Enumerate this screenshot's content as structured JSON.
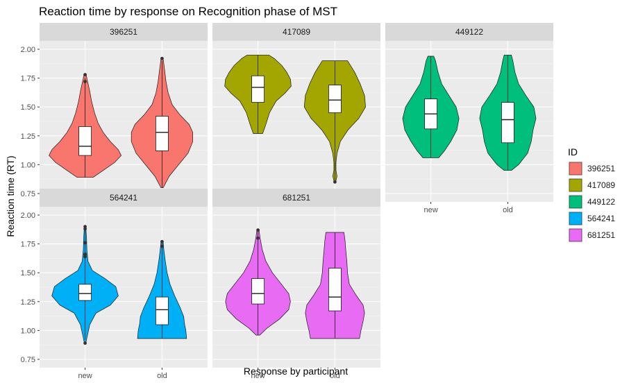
{
  "chart_data": {
    "type": "violin",
    "title": "Reaction time by response on Recognition phase of MST",
    "xlabel": "Response by participant",
    "ylabel": "Reaction time (RT)",
    "ylim": [
      0.75,
      2.0
    ],
    "yticks": [
      "0.75",
      "1.00",
      "1.25",
      "1.50",
      "1.75",
      "2.00"
    ],
    "categories": [
      "new",
      "old"
    ],
    "grid": true,
    "legend": {
      "title": "ID",
      "position": "right"
    },
    "panels": [
      {
        "id": "396251",
        "color": "#F8766D",
        "groups": [
          {
            "category": "new",
            "min": 0.89,
            "q1": 1.08,
            "median": 1.16,
            "q3": 1.33,
            "max": 1.75,
            "outliers": [
              1.72,
              1.78
            ],
            "density": [
              [
                0.89,
                0.22
              ],
              [
                0.95,
                0.5
              ],
              [
                1.02,
                0.82
              ],
              [
                1.08,
                1.0
              ],
              [
                1.13,
                0.92
              ],
              [
                1.2,
                0.7
              ],
              [
                1.28,
                0.5
              ],
              [
                1.36,
                0.36
              ],
              [
                1.45,
                0.26
              ],
              [
                1.55,
                0.18
              ],
              [
                1.65,
                0.12
              ],
              [
                1.72,
                0.07
              ],
              [
                1.78,
                0.03
              ]
            ]
          },
          {
            "category": "old",
            "min": 0.8,
            "q1": 1.12,
            "median": 1.28,
            "q3": 1.42,
            "max": 1.9,
            "outliers": [
              1.92
            ],
            "density": [
              [
                0.8,
                0.03
              ],
              [
                0.9,
                0.2
              ],
              [
                1.0,
                0.46
              ],
              [
                1.1,
                0.72
              ],
              [
                1.2,
                0.85
              ],
              [
                1.28,
                0.85
              ],
              [
                1.35,
                0.75
              ],
              [
                1.43,
                0.5
              ],
              [
                1.52,
                0.28
              ],
              [
                1.62,
                0.17
              ],
              [
                1.72,
                0.11
              ],
              [
                1.82,
                0.07
              ],
              [
                1.92,
                0.03
              ]
            ]
          }
        ]
      },
      {
        "id": "417089",
        "color": "#A3A500",
        "groups": [
          {
            "category": "new",
            "min": 1.27,
            "q1": 1.54,
            "median": 1.67,
            "q3": 1.77,
            "max": 1.95,
            "outliers": [],
            "density": [
              [
                1.27,
                0.13
              ],
              [
                1.35,
                0.22
              ],
              [
                1.45,
                0.32
              ],
              [
                1.55,
                0.5
              ],
              [
                1.62,
                0.75
              ],
              [
                1.68,
                0.92
              ],
              [
                1.74,
                0.9
              ],
              [
                1.8,
                0.8
              ],
              [
                1.86,
                0.66
              ],
              [
                1.92,
                0.45
              ],
              [
                1.95,
                0.3
              ]
            ]
          },
          {
            "category": "old",
            "min": 0.85,
            "q1": 1.45,
            "median": 1.56,
            "q3": 1.69,
            "max": 1.9,
            "outliers": [
              0.85
            ],
            "density": [
              [
                0.85,
                0.02
              ],
              [
                0.9,
                0.06
              ],
              [
                0.95,
                0.03
              ],
              [
                1.02,
                0.03
              ],
              [
                1.1,
                0.06
              ],
              [
                1.2,
                0.15
              ],
              [
                1.3,
                0.36
              ],
              [
                1.4,
                0.66
              ],
              [
                1.5,
                0.85
              ],
              [
                1.6,
                0.82
              ],
              [
                1.7,
                0.7
              ],
              [
                1.8,
                0.55
              ],
              [
                1.9,
                0.35
              ]
            ]
          }
        ]
      },
      {
        "id": "449122",
        "color": "#00BF7D",
        "groups": [
          {
            "category": "new",
            "min": 1.06,
            "q1": 1.31,
            "median": 1.44,
            "q3": 1.57,
            "max": 1.94,
            "outliers": [],
            "density": [
              [
                1.06,
                0.22
              ],
              [
                1.12,
                0.38
              ],
              [
                1.2,
                0.55
              ],
              [
                1.3,
                0.72
              ],
              [
                1.4,
                0.78
              ],
              [
                1.5,
                0.7
              ],
              [
                1.6,
                0.5
              ],
              [
                1.7,
                0.3
              ],
              [
                1.8,
                0.2
              ],
              [
                1.9,
                0.13
              ],
              [
                1.94,
                0.08
              ]
            ]
          },
          {
            "category": "old",
            "min": 0.95,
            "q1": 1.19,
            "median": 1.39,
            "q3": 1.54,
            "max": 1.95,
            "outliers": [],
            "density": [
              [
                0.95,
                0.1
              ],
              [
                1.0,
                0.3
              ],
              [
                1.1,
                0.55
              ],
              [
                1.2,
                0.65
              ],
              [
                1.3,
                0.7
              ],
              [
                1.4,
                0.78
              ],
              [
                1.5,
                0.72
              ],
              [
                1.6,
                0.5
              ],
              [
                1.7,
                0.3
              ],
              [
                1.8,
                0.2
              ],
              [
                1.9,
                0.14
              ],
              [
                1.95,
                0.1
              ]
            ]
          }
        ]
      },
      {
        "id": "564241",
        "color": "#00B0F6",
        "groups": [
          {
            "category": "new",
            "min": 0.92,
            "q1": 1.26,
            "median": 1.32,
            "q3": 1.4,
            "max": 1.87,
            "outliers": [
              0.89,
              1.64,
              1.66,
              1.76,
              1.88,
              1.9
            ],
            "density": [
              [
                0.89,
                0.02
              ],
              [
                0.95,
                0.06
              ],
              [
                1.05,
                0.13
              ],
              [
                1.15,
                0.3
              ],
              [
                1.22,
                0.7
              ],
              [
                1.3,
                0.92
              ],
              [
                1.38,
                0.85
              ],
              [
                1.45,
                0.55
              ],
              [
                1.52,
                0.2
              ],
              [
                1.6,
                0.08
              ],
              [
                1.7,
                0.05
              ],
              [
                1.8,
                0.04
              ],
              [
                1.9,
                0.02
              ]
            ]
          },
          {
            "category": "old",
            "min": 0.93,
            "q1": 1.05,
            "median": 1.18,
            "q3": 1.29,
            "max": 1.77,
            "outliers": [
              1.73,
              1.77
            ],
            "density": [
              [
                0.93,
                0.68
              ],
              [
                1.0,
                0.66
              ],
              [
                1.06,
                0.62
              ],
              [
                1.12,
                0.6
              ],
              [
                1.2,
                0.5
              ],
              [
                1.3,
                0.35
              ],
              [
                1.4,
                0.22
              ],
              [
                1.5,
                0.14
              ],
              [
                1.6,
                0.09
              ],
              [
                1.7,
                0.05
              ],
              [
                1.77,
                0.03
              ]
            ]
          }
        ]
      },
      {
        "id": "681251",
        "color": "#E76BF3",
        "groups": [
          {
            "category": "new",
            "min": 0.96,
            "q1": 1.23,
            "median": 1.32,
            "q3": 1.45,
            "max": 1.86,
            "outliers": [
              1.8,
              1.87
            ],
            "density": [
              [
                0.96,
                0.05
              ],
              [
                1.02,
                0.25
              ],
              [
                1.1,
                0.6
              ],
              [
                1.18,
                0.85
              ],
              [
                1.25,
                0.9
              ],
              [
                1.32,
                0.85
              ],
              [
                1.4,
                0.65
              ],
              [
                1.5,
                0.4
              ],
              [
                1.6,
                0.22
              ],
              [
                1.7,
                0.12
              ],
              [
                1.8,
                0.06
              ],
              [
                1.87,
                0.03
              ]
            ]
          },
          {
            "category": "old",
            "min": 0.93,
            "q1": 1.17,
            "median": 1.29,
            "q3": 1.54,
            "max": 1.85,
            "outliers": [],
            "density": [
              [
                0.93,
                0.68
              ],
              [
                1.0,
                0.72
              ],
              [
                1.08,
                0.78
              ],
              [
                1.15,
                0.82
              ],
              [
                1.22,
                0.78
              ],
              [
                1.3,
                0.6
              ],
              [
                1.4,
                0.4
              ],
              [
                1.5,
                0.35
              ],
              [
                1.6,
                0.33
              ],
              [
                1.7,
                0.3
              ],
              [
                1.78,
                0.28
              ],
              [
                1.85,
                0.25
              ]
            ]
          }
        ]
      }
    ]
  }
}
